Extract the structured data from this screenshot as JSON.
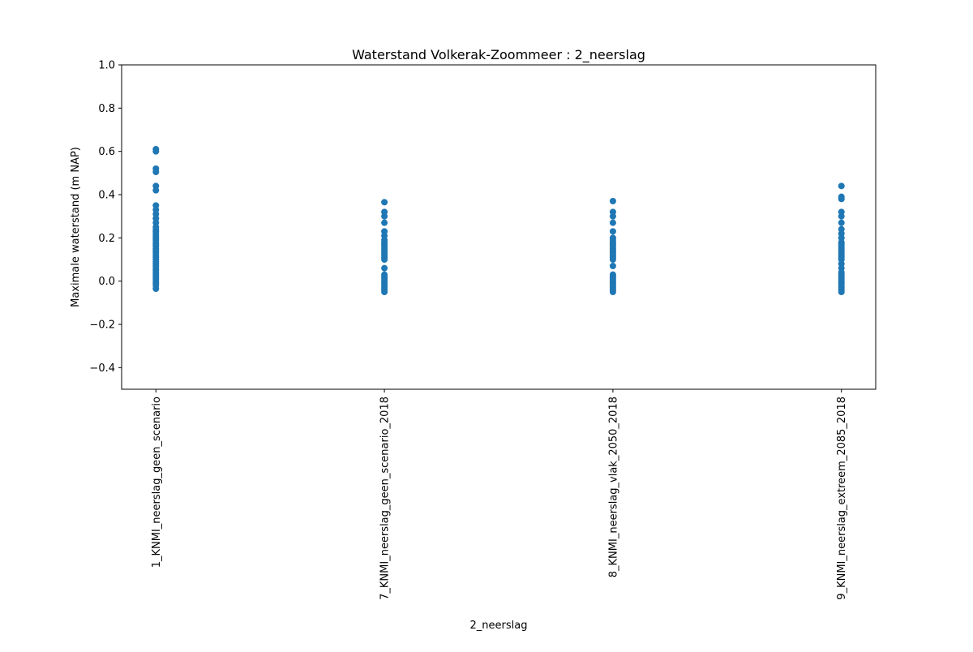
{
  "chart_data": {
    "type": "scatter",
    "title": "Waterstand Volkerak-Zoommeer : 2_neerslag",
    "xlabel": "2_neerslag",
    "ylabel": "Maximale waterstand (m NAP)",
    "ylim": [
      -0.5,
      1.0
    ],
    "yticks": [
      -0.4,
      -0.2,
      0.0,
      0.2,
      0.4,
      0.6,
      0.8,
      1.0
    ],
    "ytick_labels": [
      "−0.4",
      "−0.2",
      "0.0",
      "0.2",
      "0.4",
      "0.6",
      "0.8",
      "1.0"
    ],
    "grid": false,
    "marker_color": "#1f77b4",
    "categories": [
      "1_KNMI_neerslag_geen_scenario",
      "7_KNMI_neerslag_geen_scenario_2018",
      "8_KNMI_neerslag_vlak_2050_2018",
      "9_KNMI_neerslag_extreem_2085_2018"
    ],
    "series": [
      {
        "category": "1_KNMI_neerslag_geen_scenario",
        "values": [
          0.61,
          0.6,
          0.52,
          0.505,
          0.44,
          0.42,
          0.35,
          0.33,
          0.31,
          0.29,
          0.27,
          0.25,
          0.24,
          0.23,
          0.22,
          0.21,
          0.2,
          0.19,
          0.18,
          0.17,
          0.16,
          0.15,
          0.14,
          0.13,
          0.12,
          0.11,
          0.1,
          0.09,
          0.08,
          0.07,
          0.06,
          0.05,
          0.04,
          0.03,
          0.02,
          0.01,
          0.0,
          -0.01,
          -0.02,
          -0.035
        ]
      },
      {
        "category": "7_KNMI_neerslag_geen_scenario_2018",
        "values": [
          0.365,
          0.32,
          0.3,
          0.27,
          0.23,
          0.21,
          0.19,
          0.18,
          0.17,
          0.16,
          0.15,
          0.14,
          0.13,
          0.12,
          0.11,
          0.1,
          0.06,
          0.03,
          0.02,
          0.01,
          0.0,
          -0.01,
          -0.02,
          -0.03,
          -0.04,
          -0.05
        ]
      },
      {
        "category": "8_KNMI_neerslag_vlak_2050_2018",
        "values": [
          0.37,
          0.32,
          0.3,
          0.27,
          0.23,
          0.2,
          0.19,
          0.18,
          0.17,
          0.16,
          0.15,
          0.14,
          0.13,
          0.12,
          0.11,
          0.1,
          0.07,
          0.03,
          0.02,
          0.01,
          0.0,
          -0.01,
          -0.02,
          -0.03,
          -0.04,
          -0.05
        ]
      },
      {
        "category": "9_KNMI_neerslag_extreem_2085_2018",
        "values": [
          0.44,
          0.39,
          0.38,
          0.32,
          0.3,
          0.27,
          0.24,
          0.22,
          0.2,
          0.18,
          0.17,
          0.16,
          0.15,
          0.14,
          0.13,
          0.12,
          0.11,
          0.1,
          0.08,
          0.06,
          0.04,
          0.03,
          0.02,
          0.01,
          0.0,
          -0.01,
          -0.02,
          -0.03,
          -0.04,
          -0.05
        ]
      }
    ]
  }
}
